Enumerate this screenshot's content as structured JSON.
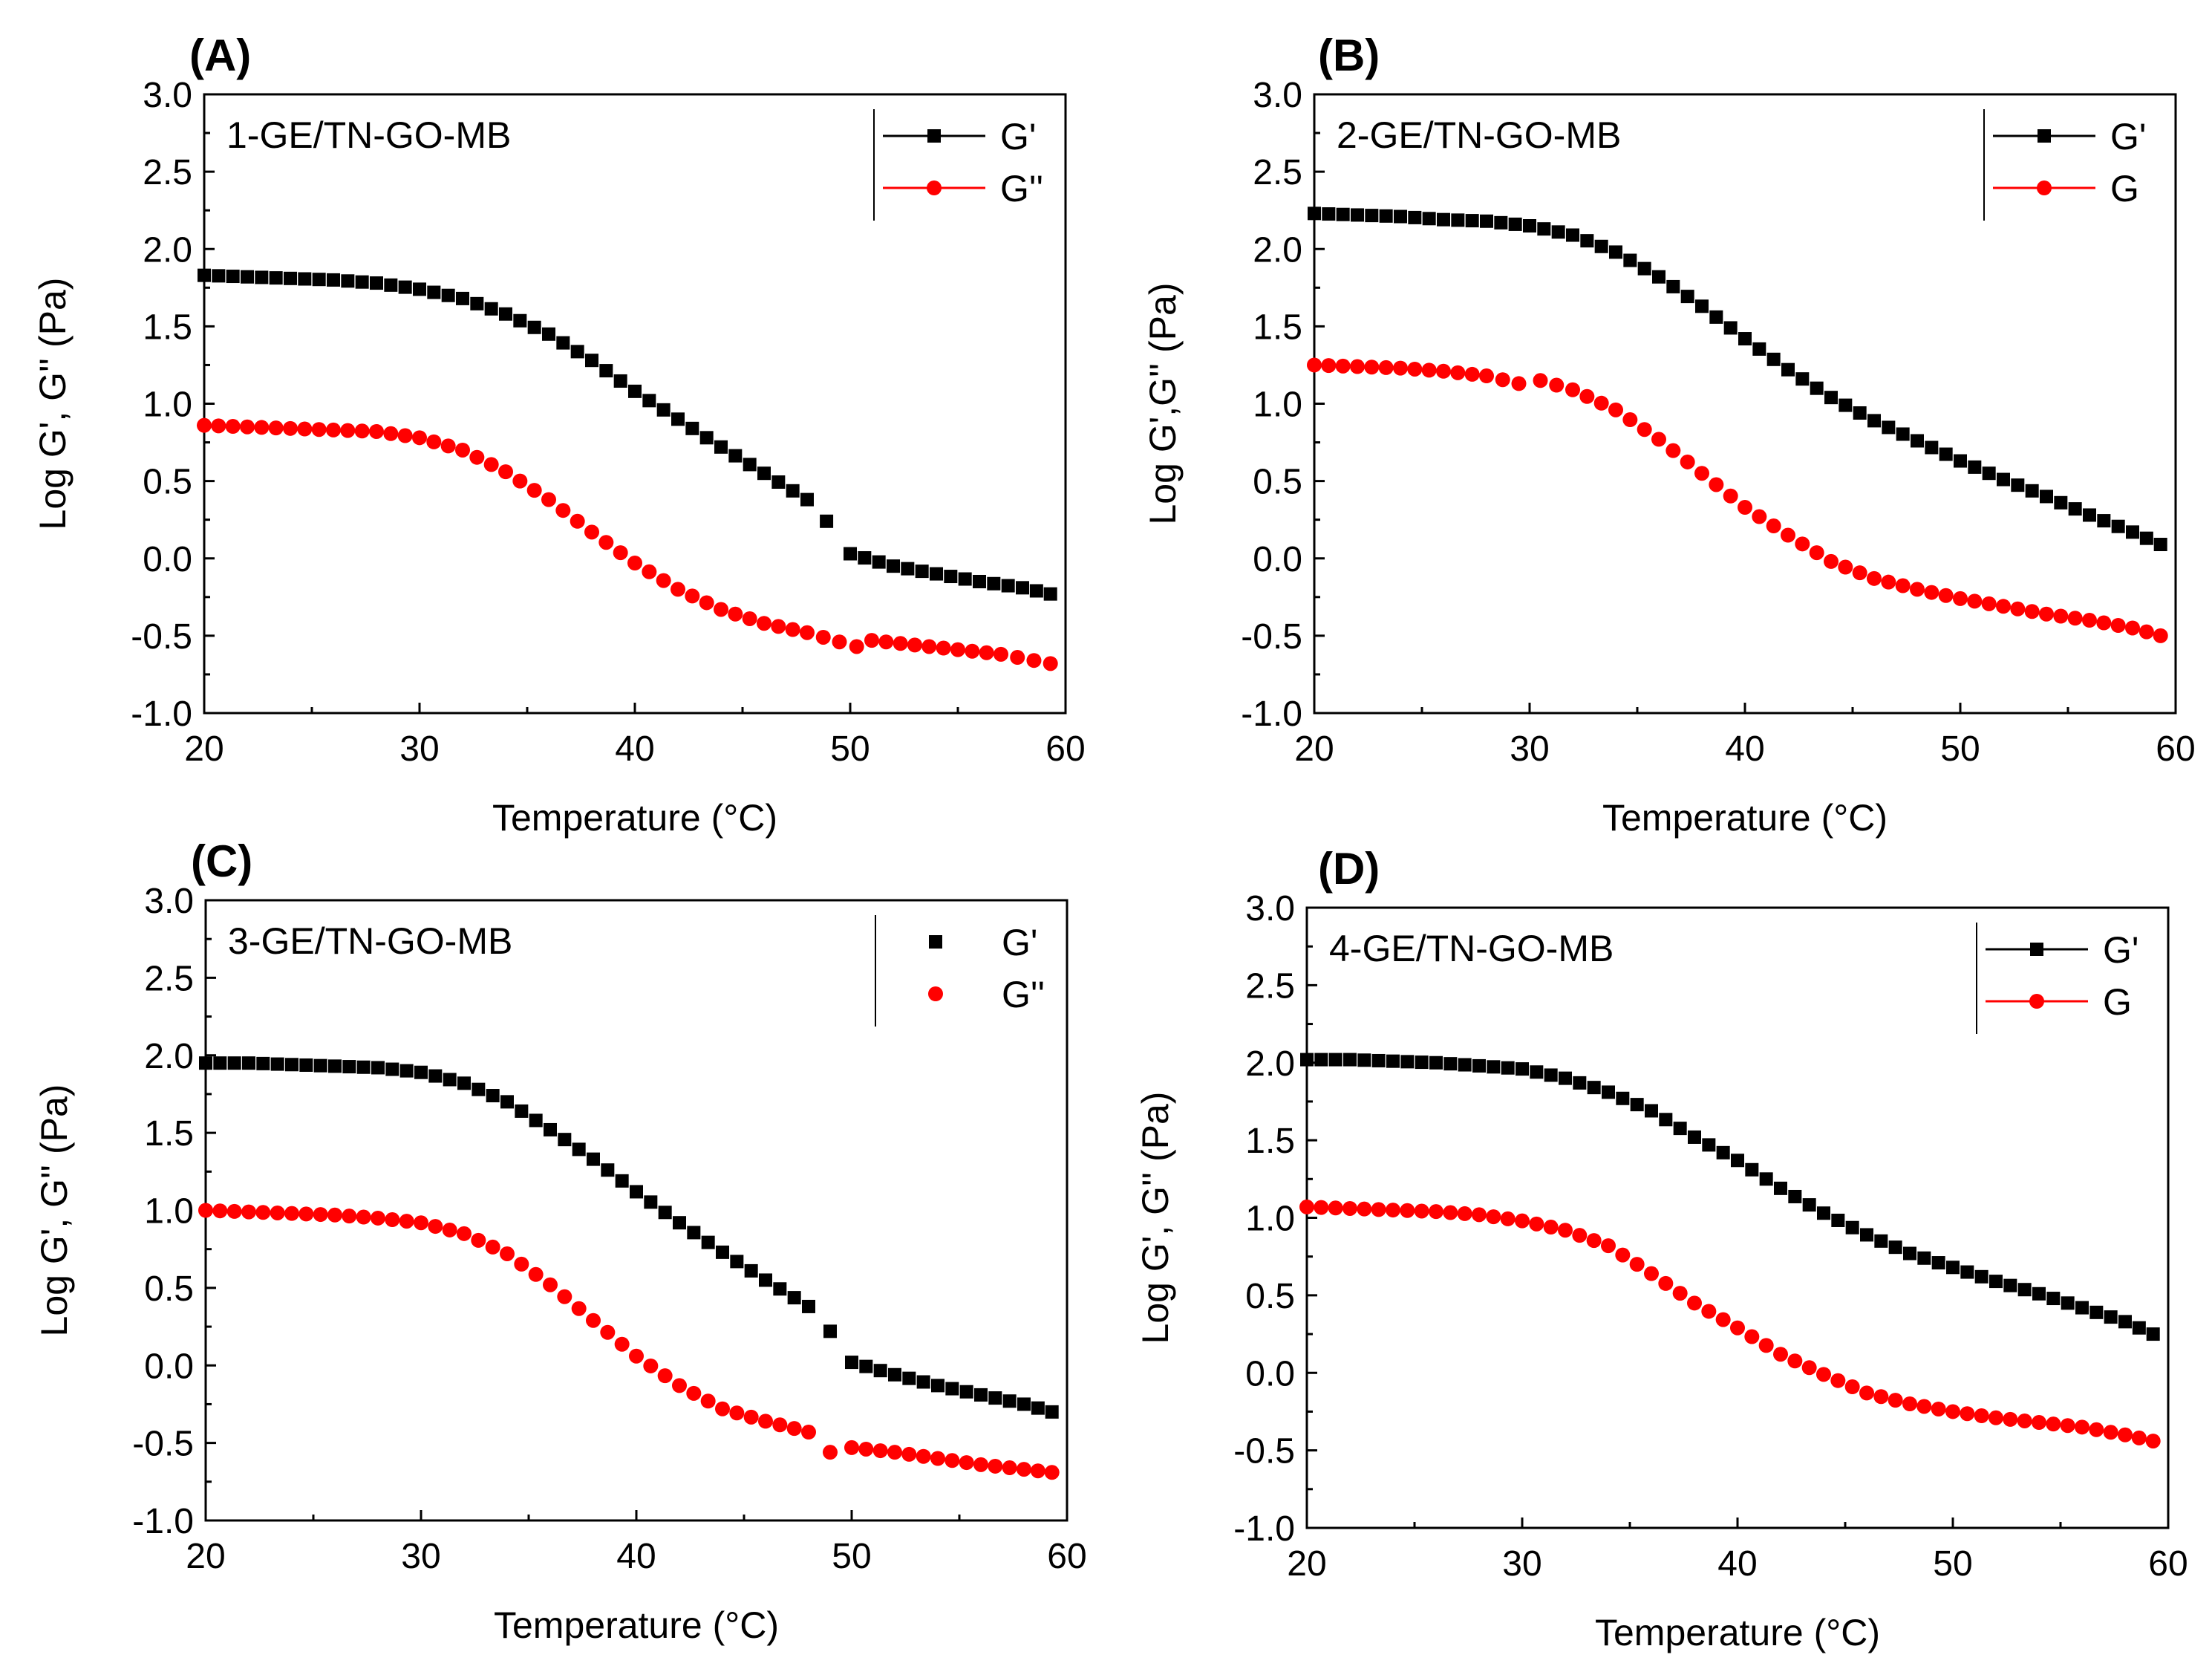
{
  "chart_data": [
    {
      "type": "scatter",
      "panel_label": "(A)",
      "annotation": "1-GE/TN-GO-MB",
      "xlabel": "Temperature (°C)",
      "ylabel": "Log G', G'' (Pa)",
      "xlim": [
        20,
        60
      ],
      "ylim": [
        -1.0,
        3.0
      ],
      "xticks": [
        "20",
        "30",
        "40",
        "50",
        "60"
      ],
      "yticks": [
        "-1.0",
        "-0.5",
        "0.0",
        "0.5",
        "1.0",
        "1.5",
        "2.0",
        "2.5",
        "3.0"
      ],
      "legend_position": "top-right",
      "legend_lines": true,
      "series": [
        {
          "name": "G'",
          "color": "#000000",
          "marker": "square",
          "x": [
            20,
            22,
            24,
            26,
            28,
            30,
            32,
            34,
            36,
            38,
            40,
            42,
            44,
            46,
            48,
            48.9,
            50,
            52,
            54,
            56,
            58,
            59.3
          ],
          "values": [
            1.83,
            1.82,
            1.81,
            1.8,
            1.78,
            1.74,
            1.68,
            1.58,
            1.45,
            1.28,
            1.08,
            0.9,
            0.72,
            0.55,
            0.38,
            0.24,
            0.03,
            -0.05,
            -0.1,
            -0.15,
            -0.19,
            -0.23
          ]
        },
        {
          "name": "G''",
          "color": "#ff0000",
          "marker": "circle",
          "x": [
            20,
            22,
            24,
            26,
            28,
            30,
            32,
            34,
            36,
            38,
            40,
            42,
            44,
            46,
            48,
            49.5,
            50.3,
            51,
            53,
            55,
            57,
            59.3
          ],
          "values": [
            0.86,
            0.85,
            0.84,
            0.83,
            0.82,
            0.78,
            0.7,
            0.56,
            0.38,
            0.17,
            -0.03,
            -0.2,
            -0.33,
            -0.42,
            -0.48,
            -0.54,
            -0.57,
            -0.53,
            -0.56,
            -0.59,
            -0.62,
            -0.68
          ]
        }
      ]
    },
    {
      "type": "scatter",
      "panel_label": "(B)",
      "annotation": "2-GE/TN-GO-MB",
      "xlabel": "Temperature (°C)",
      "ylabel": "Log G',G'' (Pa)",
      "xlim": [
        20,
        60
      ],
      "ylim": [
        -1.0,
        3.0
      ],
      "xticks": [
        "20",
        "30",
        "40",
        "50",
        "60"
      ],
      "yticks": [
        "-1.0",
        "-0.5",
        "0.0",
        "0.5",
        "1.0",
        "1.5",
        "2.0",
        "2.5",
        "3.0"
      ],
      "legend_position": "top-right",
      "legend_lines": true,
      "series": [
        {
          "name": "G'",
          "color": "#000000",
          "marker": "square",
          "x": [
            20,
            22,
            24,
            26,
            28,
            30,
            32,
            34,
            36,
            38,
            40,
            42,
            44,
            46,
            48,
            50,
            52,
            54,
            56,
            58,
            59.3
          ],
          "values": [
            2.23,
            2.22,
            2.21,
            2.19,
            2.18,
            2.15,
            2.09,
            1.98,
            1.82,
            1.63,
            1.42,
            1.22,
            1.04,
            0.89,
            0.76,
            0.63,
            0.51,
            0.4,
            0.28,
            0.17,
            0.09
          ]
        },
        {
          "name": "G",
          "color": "#ff0000",
          "marker": "circle",
          "x": [
            20,
            22,
            24,
            26,
            28,
            29.5,
            30.5,
            32,
            34,
            36,
            38,
            40,
            42,
            44,
            46,
            48,
            50,
            52,
            54,
            56,
            58,
            59.3
          ],
          "values": [
            1.25,
            1.24,
            1.23,
            1.21,
            1.18,
            1.13,
            1.15,
            1.09,
            0.96,
            0.77,
            0.55,
            0.33,
            0.15,
            -0.02,
            -0.13,
            -0.2,
            -0.26,
            -0.31,
            -0.36,
            -0.4,
            -0.45,
            -0.5
          ]
        }
      ]
    },
    {
      "type": "scatter",
      "panel_label": "(C)",
      "annotation": "3-GE/TN-GO-MB",
      "xlabel": "Temperature (°C)",
      "ylabel": "Log G', G'' (Pa)",
      "xlim": [
        20,
        60
      ],
      "ylim": [
        -1.0,
        3.0
      ],
      "xticks": [
        "20",
        "30",
        "40",
        "50",
        "60"
      ],
      "yticks": [
        "-1.0",
        "-0.5",
        "0.0",
        "0.5",
        "1.0",
        "1.5",
        "2.0",
        "2.5",
        "3.0"
      ],
      "legend_position": "top-right",
      "legend_lines": false,
      "series": [
        {
          "name": "G'",
          "color": "#000000",
          "marker": "square",
          "x": [
            20,
            22,
            24,
            26,
            28,
            30,
            32,
            34,
            36,
            38,
            40,
            42,
            44,
            46,
            48,
            49,
            50,
            52,
            54,
            56,
            58,
            59.3
          ],
          "values": [
            1.95,
            1.95,
            1.94,
            1.93,
            1.92,
            1.89,
            1.82,
            1.7,
            1.52,
            1.33,
            1.12,
            0.92,
            0.73,
            0.55,
            0.38,
            0.22,
            0.02,
            -0.06,
            -0.13,
            -0.19,
            -0.25,
            -0.3
          ]
        },
        {
          "name": "G''",
          "color": "#ff0000",
          "marker": "circle",
          "x": [
            20,
            22,
            24,
            26,
            28,
            30,
            32,
            34,
            36,
            38,
            40,
            42,
            44,
            46,
            48,
            49,
            50,
            52,
            54,
            56,
            58,
            59.3
          ],
          "values": [
            1.0,
            0.99,
            0.98,
            0.97,
            0.95,
            0.92,
            0.85,
            0.72,
            0.52,
            0.29,
            0.06,
            -0.13,
            -0.28,
            -0.36,
            -0.43,
            -0.56,
            -0.53,
            -0.56,
            -0.6,
            -0.64,
            -0.67,
            -0.69
          ]
        }
      ]
    },
    {
      "type": "scatter",
      "panel_label": "(D)",
      "annotation": "4-GE/TN-GO-MB",
      "xlabel": "Temperature (°C)",
      "ylabel": "Log G', G'' (Pa)",
      "xlim": [
        20,
        60
      ],
      "ylim": [
        -1.0,
        3.0
      ],
      "xticks": [
        "20",
        "30",
        "40",
        "50",
        "60"
      ],
      "yticks": [
        "-1.0",
        "-0.5",
        "0.0",
        "0.5",
        "1.0",
        "1.5",
        "2.0",
        "2.5",
        "3.0"
      ],
      "legend_position": "top-right",
      "legend_lines": true,
      "series": [
        {
          "name": "G'",
          "color": "#000000",
          "marker": "square",
          "x": [
            20,
            22,
            24,
            26,
            28,
            30,
            32,
            34,
            36,
            38,
            40,
            42,
            44,
            46,
            48,
            50,
            52,
            54,
            56,
            58,
            59.3
          ],
          "values": [
            2.02,
            2.02,
            2.01,
            2.0,
            1.98,
            1.96,
            1.9,
            1.81,
            1.69,
            1.52,
            1.37,
            1.19,
            1.03,
            0.89,
            0.77,
            0.68,
            0.59,
            0.51,
            0.42,
            0.33,
            0.25
          ]
        },
        {
          "name": "G",
          "color": "#ff0000",
          "marker": "circle",
          "x": [
            20,
            22,
            24,
            26,
            28,
            30,
            32,
            34,
            36,
            38,
            40,
            42,
            44,
            46,
            48,
            50,
            52,
            54,
            56,
            58,
            59.3
          ],
          "values": [
            1.07,
            1.06,
            1.05,
            1.04,
            1.02,
            0.98,
            0.92,
            0.82,
            0.64,
            0.45,
            0.29,
            0.12,
            -0.01,
            -0.13,
            -0.2,
            -0.25,
            -0.29,
            -0.32,
            -0.35,
            -0.4,
            -0.44
          ]
        }
      ]
    }
  ]
}
